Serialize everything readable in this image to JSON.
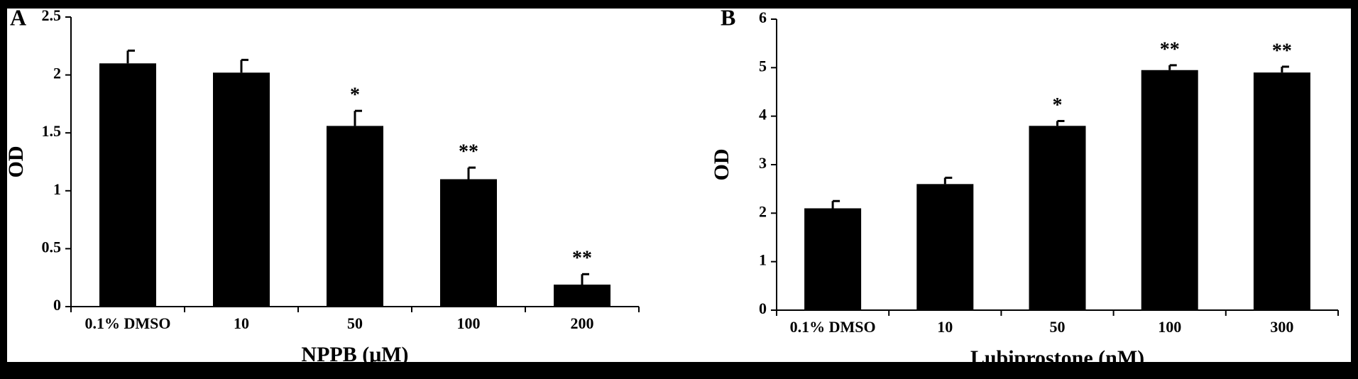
{
  "chart_data": [
    {
      "type": "bar",
      "panel": "A",
      "ylabel": "OD",
      "xlabel": "NPPB (μM)",
      "categories": [
        "0.1% DMSO",
        "10",
        "50",
        "100",
        "200"
      ],
      "values": [
        2.1,
        2.02,
        1.56,
        1.1,
        0.19
      ],
      "errors": [
        0.11,
        0.11,
        0.13,
        0.1,
        0.09
      ],
      "annotations": [
        null,
        null,
        "*",
        "**",
        "**"
      ],
      "color": "#000000",
      "ylim": [
        0,
        2.5
      ],
      "yticks": [
        0,
        0.5,
        1,
        1.5,
        2,
        2.5
      ]
    },
    {
      "type": "bar",
      "panel": "B",
      "ylabel": "OD",
      "xlabel": "Lubiprostone (nM)",
      "categories": [
        "0.1% DMSO",
        "10",
        "50",
        "100",
        "300"
      ],
      "values": [
        2.1,
        2.6,
        3.8,
        4.95,
        4.9
      ],
      "errors": [
        0.15,
        0.13,
        0.1,
        0.1,
        0.12
      ],
      "annotations": [
        null,
        null,
        "*",
        "**",
        "**"
      ],
      "color": "#000000",
      "ylim": [
        0,
        6
      ],
      "yticks": [
        0,
        1,
        2,
        3,
        4,
        5,
        6
      ]
    }
  ]
}
